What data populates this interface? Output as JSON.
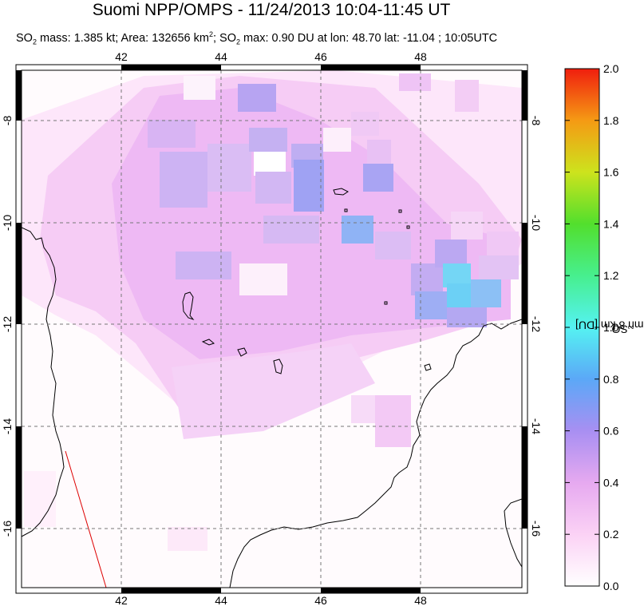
{
  "header": {
    "title": "Suomi NPP/OMPS - 11/24/2013 10:04-11:45 UT",
    "subtitle_prefix": "SO",
    "subtitle_sub": "2",
    "subtitle_mass": " mass: 1.385 kt; Area: 132656 km",
    "subtitle_sup": "2",
    "subtitle_semicolon": "; SO",
    "subtitle_sub2": "2",
    "subtitle_rest": " max: 0.90 DU at lon: 48.70 lat: -11.04 ; 10:05UTC"
  },
  "map": {
    "lon_ticks": [
      "42",
      "44",
      "46",
      "48"
    ],
    "lat_ticks": [
      "-8",
      "-10",
      "-12",
      "-14",
      "-16"
    ],
    "lon_range": [
      40,
      50
    ],
    "lat_range": [
      -17.2,
      -7.1
    ],
    "colors": {
      "coast": "#000000",
      "grid": "#777777",
      "track": "#dd0000"
    }
  },
  "colorbar": {
    "label_prefix": "SO",
    "label_sub": "2",
    "label_rest": " column 8 km [DU]",
    "ticks": [
      "0.0",
      "0.2",
      "0.4",
      "0.6",
      "0.8",
      "1.0",
      "1.2",
      "1.4",
      "1.6",
      "1.8",
      "2.0"
    ],
    "range": [
      0,
      2
    ]
  }
}
